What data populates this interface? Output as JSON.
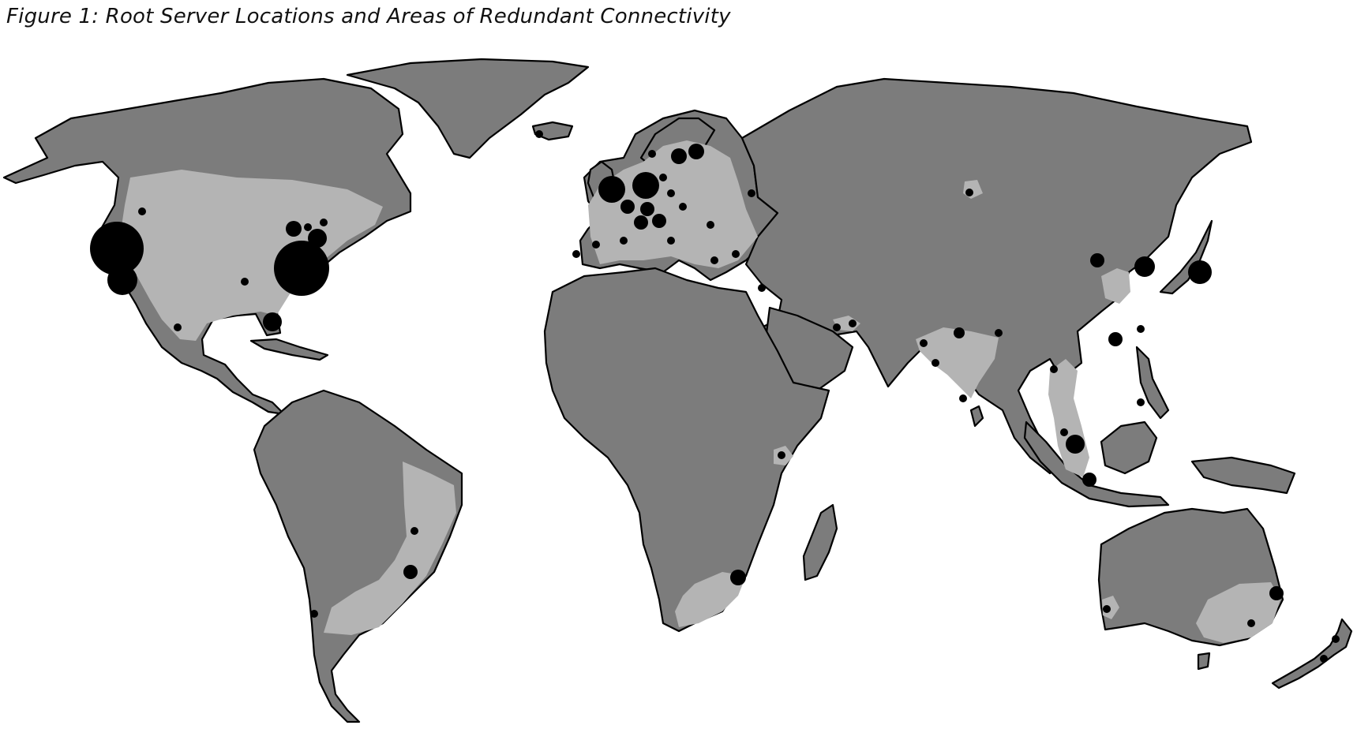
{
  "title": "Figure 1: Root Server Locations and Areas of Redundant Connectivity",
  "colors": {
    "land": "#7c7c7c",
    "redundant_connectivity": "#b4b4b4",
    "root_server": "#000000",
    "background": "#ffffff"
  }
}
